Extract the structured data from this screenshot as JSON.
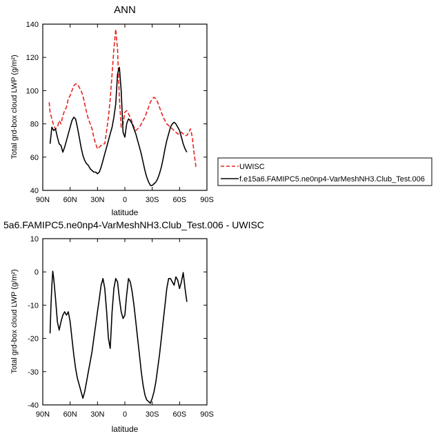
{
  "chart_data": [
    {
      "type": "line",
      "title": "ANN",
      "xlabel": "latitude",
      "ylabel": "Total grd-box cloud LWP (g/m²)",
      "xlim": [
        90,
        -90
      ],
      "ylim": [
        40,
        140
      ],
      "xticks": [
        90,
        60,
        30,
        0,
        -30,
        -60,
        -90
      ],
      "xtick_labels": [
        "90N",
        "60N",
        "30N",
        "0",
        "30S",
        "60S",
        "90S"
      ],
      "yticks": [
        40,
        60,
        80,
        100,
        120,
        140
      ],
      "ytick_labels": [
        "40",
        "60",
        "80",
        "100",
        "120",
        "140"
      ],
      "legend_position": "right, outside plot",
      "series": [
        {
          "name": "UWISC",
          "color": "#e8211f",
          "dash": "dashed",
          "x": [
            83,
            82,
            80,
            78,
            76,
            74,
            72,
            70,
            68,
            66,
            64,
            62,
            60,
            58,
            56,
            54,
            52,
            50,
            48,
            46,
            44,
            42,
            40,
            38,
            36,
            34,
            32,
            30,
            28,
            26,
            24,
            22,
            20,
            18,
            16,
            14,
            12,
            10,
            8,
            6,
            4,
            2,
            0,
            -2,
            -4,
            -6,
            -8,
            -10,
            -12,
            -14,
            -16,
            -18,
            -20,
            -22,
            -24,
            -26,
            -28,
            -30,
            -32,
            -34,
            -36,
            -38,
            -40,
            -42,
            -44,
            -46,
            -48,
            -50,
            -52,
            -54,
            -56,
            -58,
            -60,
            -62,
            -64,
            -66,
            -68,
            -70,
            -72,
            -74,
            -76,
            -78
          ],
          "y": [
            93,
            87,
            83,
            79,
            77,
            78,
            82,
            80,
            85,
            88,
            90,
            95,
            97,
            100,
            103,
            104,
            104,
            102,
            100,
            97,
            92,
            87,
            83,
            80,
            77,
            72,
            68,
            65,
            66,
            67,
            68,
            68,
            76,
            84,
            95,
            110,
            125,
            137,
            125,
            95,
            78,
            80,
            87,
            88,
            86,
            84,
            81,
            78,
            76,
            77,
            78,
            80,
            82,
            84,
            87,
            90,
            93,
            95,
            96,
            95,
            93,
            90,
            87,
            84,
            82,
            80,
            79,
            78,
            77,
            76,
            75,
            74,
            74,
            75,
            74,
            73,
            73,
            75,
            77,
            72,
            62,
            54
          ]
        },
        {
          "name": "f.e15a6.FAMIPC5.ne0np4-VarMeshNH3.Club_Test.006",
          "color": "#000000",
          "dash": "solid",
          "x": [
            82,
            80,
            78,
            76,
            74,
            72,
            70,
            68,
            66,
            64,
            62,
            60,
            58,
            56,
            54,
            52,
            50,
            48,
            46,
            44,
            42,
            40,
            38,
            36,
            34,
            32,
            30,
            28,
            26,
            24,
            22,
            20,
            18,
            16,
            14,
            12,
            10,
            8,
            6,
            4,
            2,
            0,
            -2,
            -4,
            -6,
            -8,
            -10,
            -12,
            -14,
            -16,
            -18,
            -20,
            -22,
            -24,
            -26,
            -28,
            -30,
            -32,
            -34,
            -36,
            -38,
            -40,
            -42,
            -44,
            -46,
            -48,
            -50,
            -52,
            -54,
            -56,
            -58,
            -60,
            -62,
            -64,
            -66,
            -68
          ],
          "y": [
            68,
            78,
            76,
            77,
            72,
            68,
            67,
            63,
            66,
            70,
            74,
            78,
            82,
            84,
            83,
            78,
            72,
            66,
            61,
            58,
            56,
            55,
            53,
            52,
            51,
            51,
            50,
            51,
            54,
            58,
            62,
            66,
            70,
            74,
            78,
            84,
            92,
            110,
            114,
            100,
            75,
            72,
            80,
            83,
            82,
            80,
            77,
            74,
            70,
            66,
            62,
            57,
            52,
            48,
            45,
            43,
            43,
            44,
            45,
            47,
            50,
            54,
            59,
            65,
            70,
            74,
            78,
            80,
            81,
            80,
            78,
            76,
            72,
            68,
            65,
            63
          ]
        }
      ]
    },
    {
      "type": "line",
      "title": "5a6.FAMIPC5.ne0np4-VarMeshNH3.Club_Test.006 - UWISC",
      "xlabel": "latitude",
      "ylabel": "Total grd-box cloud LWP (g/m²)",
      "xlim": [
        90,
        -90
      ],
      "ylim": [
        -40,
        10
      ],
      "xticks": [
        90,
        60,
        30,
        0,
        -30,
        -60,
        -90
      ],
      "xtick_labels": [
        "90N",
        "60N",
        "30N",
        "0",
        "30S",
        "60S",
        "90S"
      ],
      "yticks": [
        -40,
        -30,
        -20,
        -10,
        0,
        10
      ],
      "ytick_labels": [
        "-40",
        "-30",
        "-20",
        "-10",
        "0",
        "10"
      ],
      "series": [
        {
          "color": "#000000",
          "dash": "solid",
          "x": [
            82,
            81,
            80,
            79,
            78,
            76,
            74,
            72,
            70,
            68,
            66,
            64,
            62,
            60,
            58,
            56,
            54,
            52,
            50,
            48,
            46,
            44,
            42,
            40,
            38,
            36,
            34,
            32,
            30,
            28,
            26,
            24,
            22,
            20,
            18,
            16,
            14,
            12,
            10,
            8,
            6,
            4,
            2,
            0,
            -2,
            -4,
            -6,
            -8,
            -10,
            -12,
            -14,
            -16,
            -18,
            -20,
            -22,
            -24,
            -26,
            -28,
            -30,
            -32,
            -34,
            -36,
            -38,
            -40,
            -42,
            -44,
            -46,
            -48,
            -50,
            -52,
            -54,
            -56,
            -58,
            -60,
            -62,
            -64,
            -66,
            -68
          ],
          "y": [
            -18.5,
            -10,
            -4,
            0.2,
            -2,
            -8,
            -15,
            -17.5,
            -15,
            -13,
            -12,
            -13,
            -12,
            -15,
            -20,
            -25,
            -29,
            -32,
            -34,
            -36,
            -38,
            -36,
            -33,
            -30,
            -27,
            -24,
            -20,
            -16,
            -12,
            -8,
            -4,
            -2,
            -5,
            -12,
            -20,
            -23,
            -12,
            -5,
            -2,
            -3,
            -8,
            -12,
            -14,
            -13,
            -7,
            -2,
            -3,
            -6,
            -10,
            -15,
            -20,
            -25,
            -30,
            -34,
            -37,
            -38.5,
            -39,
            -39.5,
            -38,
            -36,
            -33,
            -29,
            -25,
            -20,
            -15,
            -10,
            -5,
            -2,
            -2,
            -3,
            -4,
            -1.5,
            -2.5,
            -5,
            -3,
            -0.2,
            -5,
            -9
          ]
        }
      ]
    }
  ]
}
